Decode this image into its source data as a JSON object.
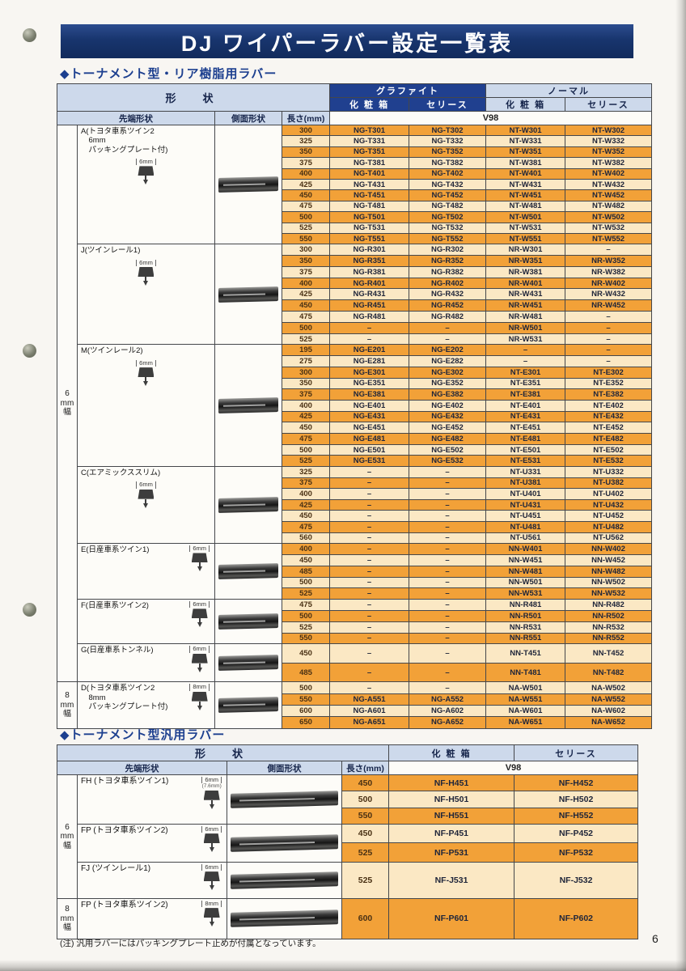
{
  "page": {
    "title": "DJ ワイパーラバー設定一覧表",
    "page_number": "6",
    "footnote": "(注) 汎用ラバーにはパッキングプレート止めが付属となっています。"
  },
  "colors": {
    "banner_bg": "#18356e",
    "header_dark_blue": "#20408f",
    "header_light_blue": "#cdd9eb",
    "row_orange": "#f2a138",
    "row_cream": "#fbe8c4",
    "section_title_blue": "#1c3f8f"
  },
  "table1": {
    "section_title": "◆トーナメント型・リア樹脂用ラバー",
    "headers": {
      "shape": "形　状",
      "graphite": "グラファイト",
      "normal": "ノーマル",
      "box": "化 粧 箱",
      "serise": "セリース",
      "tip": "先端形状",
      "side": "側面形状",
      "length": "長さ(mm)",
      "v98": "V98"
    },
    "bands": [
      {
        "width_label": [
          "6",
          "mm",
          "幅"
        ],
        "groups": [
          {
            "id": "A",
            "label_lines": [
              "A(トヨタ車系ツイン2",
              "　6mm",
              "　パッキングプレート付)"
            ],
            "mm": "6mm",
            "rows": [
              [
                "300",
                "NG-T301",
                "NG-T302",
                "NT-W301",
                "NT-W302"
              ],
              [
                "325",
                "NG-T331",
                "NG-T332",
                "NT-W331",
                "NT-W332"
              ],
              [
                "350",
                "NG-T351",
                "NG-T352",
                "NT-W351",
                "NT-W352"
              ],
              [
                "375",
                "NG-T381",
                "NG-T382",
                "NT-W381",
                "NT-W382"
              ],
              [
                "400",
                "NG-T401",
                "NG-T402",
                "NT-W401",
                "NT-W402"
              ],
              [
                "425",
                "NG-T431",
                "NG-T432",
                "NT-W431",
                "NT-W432"
              ],
              [
                "450",
                "NG-T451",
                "NG-T452",
                "NT-W451",
                "NT-W452"
              ],
              [
                "475",
                "NG-T481",
                "NG-T482",
                "NT-W481",
                "NT-W482"
              ],
              [
                "500",
                "NG-T501",
                "NG-T502",
                "NT-W501",
                "NT-W502"
              ],
              [
                "525",
                "NG-T531",
                "NG-T532",
                "NT-W531",
                "NT-W532"
              ],
              [
                "550",
                "NG-T551",
                "NG-T552",
                "NT-W551",
                "NT-W552"
              ]
            ]
          },
          {
            "id": "J",
            "label_lines": [
              "J(ツインレール1)"
            ],
            "mm": "6mm",
            "rows": [
              [
                "300",
                "NG-R301",
                "NG-R302",
                "NR-W301",
                "–"
              ],
              [
                "350",
                "NG-R351",
                "NG-R352",
                "NR-W351",
                "NR-W352"
              ],
              [
                "375",
                "NG-R381",
                "NG-R382",
                "NR-W381",
                "NR-W382"
              ],
              [
                "400",
                "NG-R401",
                "NG-R402",
                "NR-W401",
                "NR-W402"
              ],
              [
                "425",
                "NG-R431",
                "NG-R432",
                "NR-W431",
                "NR-W432"
              ],
              [
                "450",
                "NG-R451",
                "NG-R452",
                "NR-W451",
                "NR-W452"
              ],
              [
                "475",
                "NG-R481",
                "NG-R482",
                "NR-W481",
                "–"
              ],
              [
                "500",
                "–",
                "–",
                "NR-W501",
                "–"
              ],
              [
                "525",
                "–",
                "–",
                "NR-W531",
                "–"
              ]
            ]
          },
          {
            "id": "M",
            "label_lines": [
              "M(ツインレール2)"
            ],
            "mm": "6mm",
            "rows": [
              [
                "195",
                "NG-E201",
                "NG-E202",
                "–",
                "–"
              ],
              [
                "275",
                "NG-E281",
                "NG-E282",
                "–",
                "–"
              ],
              [
                "300",
                "NG-E301",
                "NG-E302",
                "NT-E301",
                "NT-E302"
              ],
              [
                "350",
                "NG-E351",
                "NG-E352",
                "NT-E351",
                "NT-E352"
              ],
              [
                "375",
                "NG-E381",
                "NG-E382",
                "NT-E381",
                "NT-E382"
              ],
              [
                "400",
                "NG-E401",
                "NG-E402",
                "NT-E401",
                "NT-E402"
              ],
              [
                "425",
                "NG-E431",
                "NG-E432",
                "NT-E431",
                "NT-E432"
              ],
              [
                "450",
                "NG-E451",
                "NG-E452",
                "NT-E451",
                "NT-E452"
              ],
              [
                "475",
                "NG-E481",
                "NG-E482",
                "NT-E481",
                "NT-E482"
              ],
              [
                "500",
                "NG-E501",
                "NG-E502",
                "NT-E501",
                "NT-E502"
              ],
              [
                "525",
                "NG-E531",
                "NG-E532",
                "NT-E531",
                "NT-E532"
              ]
            ]
          },
          {
            "id": "C",
            "label_lines": [
              "C(エアミックススリム)"
            ],
            "mm": "6mm",
            "rows": [
              [
                "325",
                "–",
                "–",
                "NT-U331",
                "NT-U332"
              ],
              [
                "375",
                "–",
                "–",
                "NT-U381",
                "NT-U382"
              ],
              [
                "400",
                "–",
                "–",
                "NT-U401",
                "NT-U402"
              ],
              [
                "425",
                "–",
                "–",
                "NT-U431",
                "NT-U432"
              ],
              [
                "450",
                "–",
                "–",
                "NT-U451",
                "NT-U452"
              ],
              [
                "475",
                "–",
                "–",
                "NT-U481",
                "NT-U482"
              ],
              [
                "560",
                "–",
                "–",
                "NT-U561",
                "NT-U562"
              ]
            ]
          },
          {
            "id": "E",
            "label_lines": [
              "E(日産車系ツイン1)"
            ],
            "mm": "6mm",
            "rows": [
              [
                "400",
                "–",
                "–",
                "NN-W401",
                "NN-W402"
              ],
              [
                "450",
                "–",
                "–",
                "NN-W451",
                "NN-W452"
              ],
              [
                "485",
                "–",
                "–",
                "NN-W481",
                "NN-W482"
              ],
              [
                "500",
                "–",
                "–",
                "NN-W501",
                "NN-W502"
              ],
              [
                "525",
                "–",
                "–",
                "NN-W531",
                "NN-W532"
              ]
            ]
          },
          {
            "id": "F",
            "label_lines": [
              "F(日産車系ツイン2)"
            ],
            "mm": "6mm",
            "rows": [
              [
                "475",
                "–",
                "–",
                "NN-R481",
                "NN-R482"
              ],
              [
                "500",
                "–",
                "–",
                "NN-R501",
                "NN-R502"
              ],
              [
                "525",
                "–",
                "–",
                "NN-R531",
                "NN-R532"
              ],
              [
                "550",
                "–",
                "–",
                "NN-R551",
                "NN-R552"
              ]
            ]
          },
          {
            "id": "G",
            "label_lines": [
              "G(日産車系トンネル)"
            ],
            "mm": "6mm",
            "rows": [
              [
                "450",
                "–",
                "–",
                "NN-T451",
                "NN-T452"
              ],
              [
                "485",
                "–",
                "–",
                "NN-T481",
                "NN-T482"
              ]
            ]
          }
        ]
      },
      {
        "width_label": [
          "8",
          "mm",
          "幅"
        ],
        "groups": [
          {
            "id": "D",
            "label_lines": [
              "D(トヨタ車系ツイン2",
              "　8mm",
              "　パッキングプレート付)"
            ],
            "mm": "8mm",
            "rows": [
              [
                "500",
                "–",
                "–",
                "NA-W501",
                "NA-W502"
              ],
              [
                "550",
                "NG-A551",
                "NG-A552",
                "NA-W551",
                "NA-W552"
              ],
              [
                "600",
                "NG-A601",
                "NG-A602",
                "NA-W601",
                "NA-W602"
              ],
              [
                "650",
                "NG-A651",
                "NG-A652",
                "NA-W651",
                "NA-W652"
              ]
            ]
          }
        ]
      }
    ]
  },
  "table2": {
    "section_title": "◆トーナメント型汎用ラバー",
    "headers": {
      "shape": "形　状",
      "box": "化 粧 箱",
      "serise": "セリース",
      "tip": "先端形状",
      "side": "側面形状",
      "length": "長さ(mm)",
      "v98": "V98"
    },
    "bands": [
      {
        "width_label": [
          "6",
          "mm",
          "幅"
        ],
        "groups": [
          {
            "id": "FH",
            "label_lines": [
              "FH (トヨタ車系ツイン1)"
            ],
            "mm": "6mm",
            "mm_sub": "(7.6mm)",
            "rows": [
              [
                "450",
                "NF-H451",
                "NF-H452"
              ],
              [
                "500",
                "NF-H501",
                "NF-H502"
              ],
              [
                "550",
                "NF-H551",
                "NF-H552"
              ]
            ]
          },
          {
            "id": "FP6",
            "label_lines": [
              "FP (トヨタ車系ツイン2)"
            ],
            "mm": "6mm",
            "rows": [
              [
                "450",
                "NF-P451",
                "NF-P452"
              ],
              [
                "525",
                "NF-P531",
                "NF-P532"
              ]
            ]
          },
          {
            "id": "FJ",
            "label_lines": [
              "FJ (ツインレール1)"
            ],
            "mm": "6mm",
            "rows": [
              [
                "525",
                "NF-J531",
                "NF-J532"
              ]
            ]
          }
        ]
      },
      {
        "width_label": [
          "8",
          "mm",
          "幅"
        ],
        "groups": [
          {
            "id": "FP8",
            "label_lines": [
              "FP (トヨタ車系ツイン2)"
            ],
            "mm": "8mm",
            "rows": [
              [
                "600",
                "NF-P601",
                "NF-P602"
              ]
            ]
          }
        ]
      }
    ]
  }
}
